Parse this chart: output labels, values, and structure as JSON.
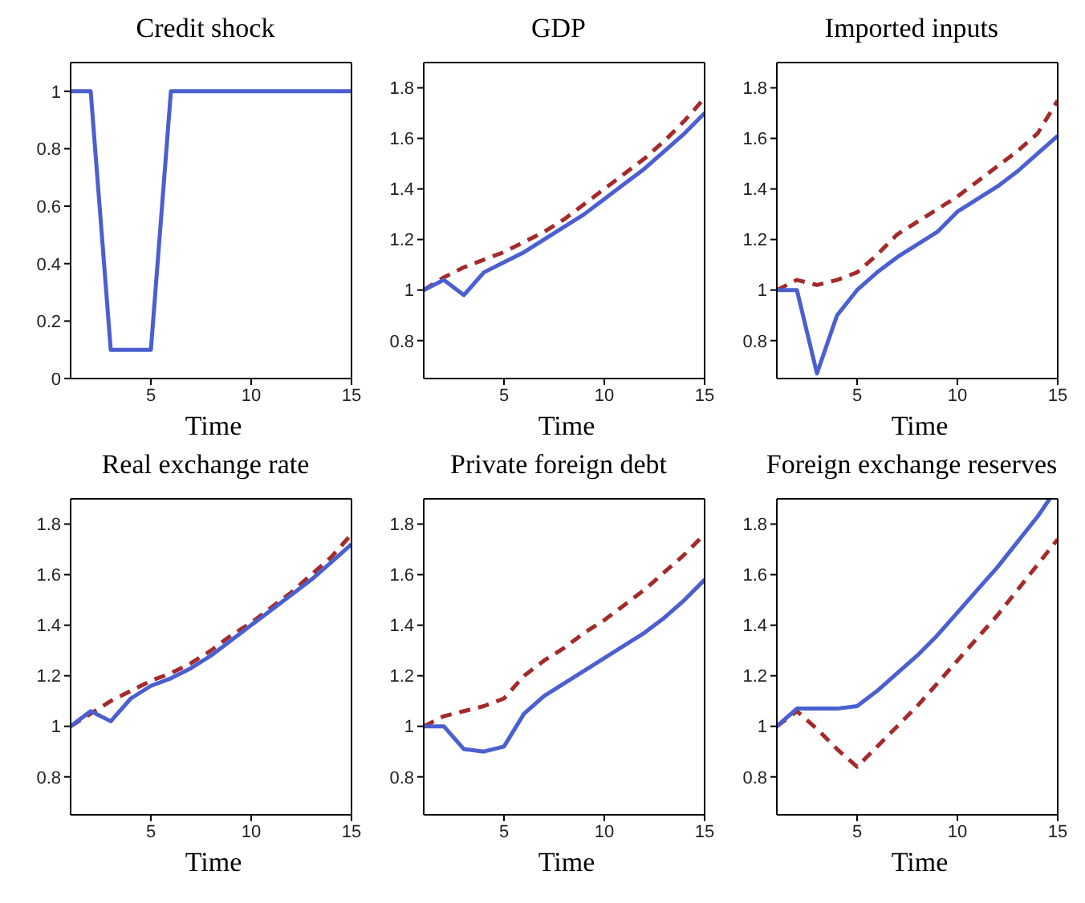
{
  "chart_data": [
    {
      "type": "line",
      "title": "Credit shock",
      "xlabel": "Time",
      "xlim": [
        1,
        15
      ],
      "xticks": [
        5,
        10,
        15
      ],
      "ylim": [
        0,
        1.1
      ],
      "yticks": [
        0,
        0.2,
        0.4,
        0.6,
        0.8,
        1
      ],
      "series": [
        {
          "color": "#4a5fd0",
          "line_style": "solid",
          "x": [
            1,
            2,
            3,
            4,
            5,
            6,
            7,
            8,
            9,
            10,
            11,
            12,
            13,
            14,
            15
          ],
          "values": [
            1,
            1,
            0.1,
            0.1,
            0.1,
            1,
            1,
            1,
            1,
            1,
            1,
            1,
            1,
            1,
            1
          ]
        }
      ]
    },
    {
      "type": "line",
      "title": "GDP",
      "xlabel": "Time",
      "xlim": [
        1,
        15
      ],
      "xticks": [
        5,
        10,
        15
      ],
      "ylim": [
        0.65,
        1.9
      ],
      "yticks": [
        0.8,
        1,
        1.2,
        1.4,
        1.6,
        1.8
      ],
      "series": [
        {
          "color": "#a52a2a",
          "line_style": "dashed",
          "x": [
            1,
            2,
            3,
            4,
            5,
            6,
            7,
            8,
            9,
            10,
            11,
            12,
            13,
            14,
            15
          ],
          "values": [
            1,
            1.05,
            1.09,
            1.12,
            1.15,
            1.19,
            1.23,
            1.28,
            1.34,
            1.4,
            1.46,
            1.52,
            1.59,
            1.67,
            1.76
          ]
        },
        {
          "color": "#4a5fd0",
          "line_style": "solid",
          "x": [
            1,
            2,
            3,
            4,
            5,
            6,
            7,
            8,
            9,
            10,
            11,
            12,
            13,
            14,
            15
          ],
          "values": [
            1,
            1.04,
            0.98,
            1.07,
            1.11,
            1.15,
            1.2,
            1.25,
            1.3,
            1.36,
            1.42,
            1.48,
            1.55,
            1.62,
            1.7
          ]
        }
      ]
    },
    {
      "type": "line",
      "title": "Imported inputs",
      "xlabel": "Time",
      "xlim": [
        1,
        15
      ],
      "xticks": [
        5,
        10,
        15
      ],
      "ylim": [
        0.65,
        1.9
      ],
      "yticks": [
        0.8,
        1,
        1.2,
        1.4,
        1.6,
        1.8
      ],
      "series": [
        {
          "color": "#a52a2a",
          "line_style": "dashed",
          "x": [
            1,
            2,
            3,
            4,
            5,
            6,
            7,
            8,
            9,
            10,
            11,
            12,
            13,
            14,
            15
          ],
          "values": [
            1,
            1.04,
            1.02,
            1.04,
            1.07,
            1.14,
            1.22,
            1.27,
            1.32,
            1.37,
            1.43,
            1.49,
            1.55,
            1.62,
            1.75
          ]
        },
        {
          "color": "#4a5fd0",
          "line_style": "solid",
          "x": [
            1,
            2,
            3,
            4,
            5,
            6,
            7,
            8,
            9,
            10,
            11,
            12,
            13,
            14,
            15
          ],
          "values": [
            1,
            1,
            0.67,
            0.9,
            1,
            1.07,
            1.13,
            1.18,
            1.23,
            1.31,
            1.36,
            1.41,
            1.47,
            1.54,
            1.61
          ]
        }
      ]
    },
    {
      "type": "line",
      "title": "Real exchange rate",
      "xlabel": "Time",
      "xlim": [
        1,
        15
      ],
      "xticks": [
        5,
        10,
        15
      ],
      "ylim": [
        0.65,
        1.9
      ],
      "yticks": [
        0.8,
        1,
        1.2,
        1.4,
        1.6,
        1.8
      ],
      "series": [
        {
          "color": "#a52a2a",
          "line_style": "dashed",
          "x": [
            1,
            2,
            3,
            4,
            5,
            6,
            7,
            8,
            9,
            10,
            11,
            12,
            13,
            14,
            15
          ],
          "values": [
            1,
            1.05,
            1.1,
            1.14,
            1.18,
            1.21,
            1.25,
            1.3,
            1.36,
            1.41,
            1.47,
            1.53,
            1.6,
            1.67,
            1.76
          ]
        },
        {
          "color": "#4a5fd0",
          "line_style": "solid",
          "x": [
            1,
            2,
            3,
            4,
            5,
            6,
            7,
            8,
            9,
            10,
            11,
            12,
            13,
            14,
            15
          ],
          "values": [
            1,
            1.06,
            1.02,
            1.11,
            1.16,
            1.19,
            1.23,
            1.28,
            1.34,
            1.4,
            1.46,
            1.52,
            1.58,
            1.65,
            1.72
          ]
        }
      ]
    },
    {
      "type": "line",
      "title": "Private foreign debt",
      "xlabel": "Time",
      "xlim": [
        1,
        15
      ],
      "xticks": [
        5,
        10,
        15
      ],
      "ylim": [
        0.65,
        1.9
      ],
      "yticks": [
        0.8,
        1,
        1.2,
        1.4,
        1.6,
        1.8
      ],
      "series": [
        {
          "color": "#a52a2a",
          "line_style": "dashed",
          "x": [
            1,
            2,
            3,
            4,
            5,
            6,
            7,
            8,
            9,
            10,
            11,
            12,
            13,
            14,
            15
          ],
          "values": [
            1,
            1.04,
            1.06,
            1.08,
            1.11,
            1.2,
            1.26,
            1.31,
            1.37,
            1.42,
            1.48,
            1.54,
            1.61,
            1.68,
            1.76
          ]
        },
        {
          "color": "#4a5fd0",
          "line_style": "solid",
          "x": [
            1,
            2,
            3,
            4,
            5,
            6,
            7,
            8,
            9,
            10,
            11,
            12,
            13,
            14,
            15
          ],
          "values": [
            1,
            1,
            0.91,
            0.9,
            0.92,
            1.05,
            1.12,
            1.17,
            1.22,
            1.27,
            1.32,
            1.37,
            1.43,
            1.5,
            1.58
          ]
        }
      ]
    },
    {
      "type": "line",
      "title": "Foreign exchange reserves",
      "xlabel": "Time",
      "xlim": [
        1,
        15
      ],
      "xticks": [
        5,
        10,
        15
      ],
      "ylim": [
        0.65,
        1.9
      ],
      "yticks": [
        0.8,
        1,
        1.2,
        1.4,
        1.6,
        1.8
      ],
      "series": [
        {
          "color": "#a52a2a",
          "line_style": "dashed",
          "x": [
            1,
            2,
            3,
            4,
            5,
            6,
            7,
            8,
            9,
            10,
            11,
            12,
            13,
            14,
            15
          ],
          "values": [
            1,
            1.06,
            0.99,
            0.91,
            0.84,
            0.92,
            1,
            1.08,
            1.17,
            1.26,
            1.35,
            1.44,
            1.54,
            1.64,
            1.74
          ]
        },
        {
          "color": "#4a5fd0",
          "line_style": "solid",
          "x": [
            1,
            2,
            3,
            4,
            5,
            6,
            7,
            8,
            9,
            10,
            11,
            12,
            13,
            14,
            14.6
          ],
          "values": [
            1,
            1.07,
            1.07,
            1.07,
            1.08,
            1.14,
            1.21,
            1.28,
            1.36,
            1.45,
            1.54,
            1.63,
            1.73,
            1.83,
            1.9
          ]
        }
      ]
    }
  ]
}
